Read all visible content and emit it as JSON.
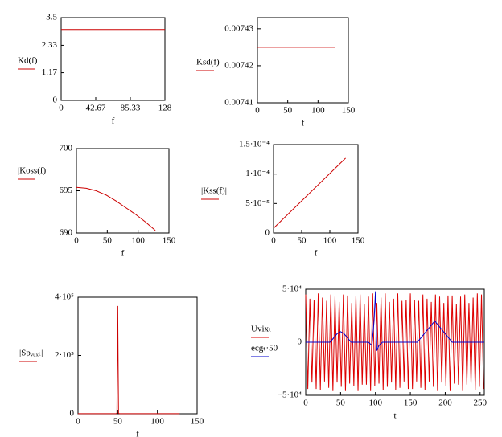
{
  "chart_data": [
    {
      "type": "line",
      "xlabel": "f",
      "xlim": [
        0,
        128
      ],
      "xticks": [
        0,
        42.67,
        85.33,
        128
      ],
      "ylim": [
        0,
        3.5
      ],
      "yticks": [
        0,
        1.17,
        2.33,
        3.5
      ],
      "series": [
        {
          "name": "Kd(f)",
          "color": "#cc0000",
          "x": [
            0,
            128
          ],
          "values": [
            3,
            3
          ]
        }
      ]
    },
    {
      "type": "line",
      "xlabel": "f",
      "xlim": [
        0,
        150
      ],
      "xticks": [
        0,
        50,
        100,
        150
      ],
      "ylim": [
        0.00741,
        0.007433
      ],
      "yticks": [
        0.00741,
        0.00742,
        0.00743
      ],
      "series": [
        {
          "name": "Ksd(f)",
          "color": "#cc0000",
          "x": [
            0,
            128
          ],
          "values": [
            0.007425,
            0.007425
          ]
        }
      ]
    },
    {
      "type": "line",
      "xlabel": "f",
      "xlim": [
        0,
        150
      ],
      "xticks": [
        0,
        50,
        100,
        150
      ],
      "ylim": [
        690,
        700
      ],
      "yticks": [
        690,
        695,
        700
      ],
      "series": [
        {
          "name": "|Koss(f)|",
          "color": "#cc0000",
          "x": [
            0,
            16,
            32,
            48,
            64,
            80,
            96,
            112,
            128
          ],
          "values": [
            695.4,
            695.3,
            695.0,
            694.5,
            693.8,
            693.0,
            692.2,
            691.3,
            690.3
          ]
        }
      ]
    },
    {
      "type": "line",
      "xlabel": "f",
      "xlim": [
        0,
        150
      ],
      "xticks": [
        0,
        50,
        100,
        150
      ],
      "ylim": [
        0,
        0.00015
      ],
      "yticks": [
        0,
        {
          "value": 5e-05,
          "label": "5·10⁻⁵"
        },
        {
          "value": 0.0001,
          "label": "1·10⁻⁴"
        },
        {
          "value": 0.00015,
          "label": "1.5·10⁻⁴"
        }
      ],
      "series": [
        {
          "name": "|Kss(f)|",
          "color": "#cc0000",
          "x": [
            0,
            128
          ],
          "values": [
            8e-06,
            0.000127
          ]
        }
      ]
    },
    {
      "type": "line",
      "xlabel": "f",
      "xlim": [
        0,
        150
      ],
      "xticks": [
        0,
        50,
        100,
        150
      ],
      "ylim": [
        0,
        400000
      ],
      "yticks": [
        0,
        {
          "value": 200000,
          "label": "2·10⁵"
        },
        {
          "value": 400000,
          "label": "4·10⁵"
        }
      ],
      "series": [
        {
          "name": "|Spᵥᵤₓₜ|",
          "color": "#cc0000",
          "x": [
            0,
            48,
            49,
            50,
            51,
            52,
            128
          ],
          "values": [
            500,
            500,
            2000,
            370000,
            2000,
            500,
            500
          ]
        }
      ]
    },
    {
      "type": "line",
      "xlabel": "t",
      "xlim": [
        0,
        256
      ],
      "xticks": [
        0,
        50,
        100,
        150,
        200,
        250
      ],
      "ylim": [
        -50000,
        50000
      ],
      "yticks": [
        {
          "value": -50000,
          "label": "−5·10⁴"
        },
        0,
        {
          "value": 50000,
          "label": "5·10⁴"
        }
      ],
      "series": [
        {
          "name": "Uvixₜ",
          "color": "#dd0000",
          "x": [
            0,
            3,
            6,
            9,
            12,
            15,
            18,
            21,
            24,
            27,
            30,
            33,
            36,
            39,
            42,
            45,
            48,
            51,
            54,
            57,
            60,
            63,
            66,
            69,
            72,
            75,
            78,
            81,
            84,
            87,
            90,
            93,
            96,
            99,
            102,
            105,
            108,
            111,
            114,
            117,
            120,
            123,
            126,
            129,
            132,
            135,
            138,
            141,
            144,
            147,
            150,
            153,
            156,
            159,
            162,
            165,
            168,
            171,
            174,
            177,
            180,
            183,
            186,
            189,
            192,
            195,
            198,
            201,
            204,
            207,
            210,
            213,
            216,
            219,
            222,
            225,
            228,
            231,
            234,
            237,
            240,
            243,
            246,
            249,
            252,
            255
          ],
          "values": [
            45000,
            -44000,
            41000,
            -38000,
            40000,
            -44000,
            46000,
            -45000,
            42000,
            -37000,
            39000,
            -43000,
            45000,
            -46000,
            43000,
            -38000,
            38000,
            -42000,
            45000,
            -46000,
            44000,
            -39000,
            37000,
            -41000,
            44000,
            -46000,
            45000,
            -40000,
            36000,
            -40000,
            43000,
            -46000,
            46000,
            -41000,
            37000,
            -39000,
            42000,
            -45000,
            46000,
            -42000,
            38000,
            -38000,
            41000,
            -45000,
            46000,
            -43000,
            39000,
            -37000,
            40000,
            -44000,
            46000,
            -44000,
            40000,
            -37000,
            39000,
            -43000,
            45000,
            -45000,
            41000,
            -37000,
            38000,
            -42000,
            45000,
            -46000,
            43000,
            -38000,
            37000,
            -41000,
            44000,
            -46000,
            44000,
            -39000,
            36000,
            -40000,
            43000,
            -46000,
            45000,
            -40000,
            37000,
            -39000,
            42000,
            -45000,
            46000,
            -42000,
            45000,
            -44000
          ]
        },
        {
          "name": "ecgₜ·50",
          "color": "#0000cc",
          "x": [
            0,
            35,
            45,
            50,
            55,
            65,
            90,
            95,
            98,
            100,
            102,
            105,
            110,
            130,
            160,
            175,
            185,
            195,
            210,
            256
          ],
          "values": [
            0,
            0,
            8000,
            10000,
            8000,
            0,
            0,
            -3000,
            20000,
            48000,
            -8000,
            -3000,
            0,
            0,
            0,
            12000,
            20000,
            12000,
            0,
            0
          ]
        }
      ]
    }
  ]
}
